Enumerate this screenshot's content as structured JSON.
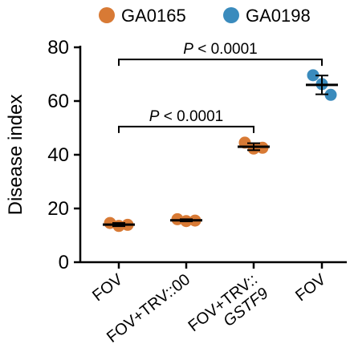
{
  "chart_data": {
    "type": "scatter",
    "ylabel": "Disease index",
    "ylim": [
      0,
      80
    ],
    "yticks": [
      0,
      20,
      40,
      60,
      80
    ],
    "categories": [
      {
        "lines": [
          "FOV"
        ],
        "italic": [
          false
        ]
      },
      {
        "lines": [
          "FOV+TRV::00"
        ],
        "italic": [
          false
        ]
      },
      {
        "lines": [
          "FOV+TRV::",
          "GSTF9"
        ],
        "italic": [
          false,
          true
        ]
      },
      {
        "lines": [
          "FOV"
        ],
        "italic": [
          false
        ]
      }
    ],
    "legend": {
      "position": "top",
      "entries": [
        {
          "name": "GA0165",
          "color": "#D87A35"
        },
        {
          "name": "GA0198",
          "color": "#3A8BBD"
        }
      ]
    },
    "groups": [
      {
        "category_index": 0,
        "series": "GA0165",
        "mean": 14.0,
        "sd": 0.6,
        "points": [
          14.6,
          13.5,
          13.9
        ]
      },
      {
        "category_index": 1,
        "series": "GA0165",
        "mean": 15.6,
        "sd": 0.4,
        "points": [
          16.0,
          15.3,
          15.5
        ]
      },
      {
        "category_index": 2,
        "series": "GA0165",
        "mean": 43.0,
        "sd": 1.3,
        "points": [
          44.5,
          42.3,
          42.6
        ]
      },
      {
        "category_index": 3,
        "series": "GA0198",
        "mean": 66.0,
        "sd": 3.5,
        "points": [
          69.6,
          66.3,
          62.3
        ]
      }
    ],
    "significance": [
      {
        "from": 0,
        "to": 3,
        "y": 75.5,
        "label": "P < 0.0001"
      },
      {
        "from": 0,
        "to": 2,
        "y": 50.5,
        "label": "P < 0.0001"
      }
    ]
  }
}
